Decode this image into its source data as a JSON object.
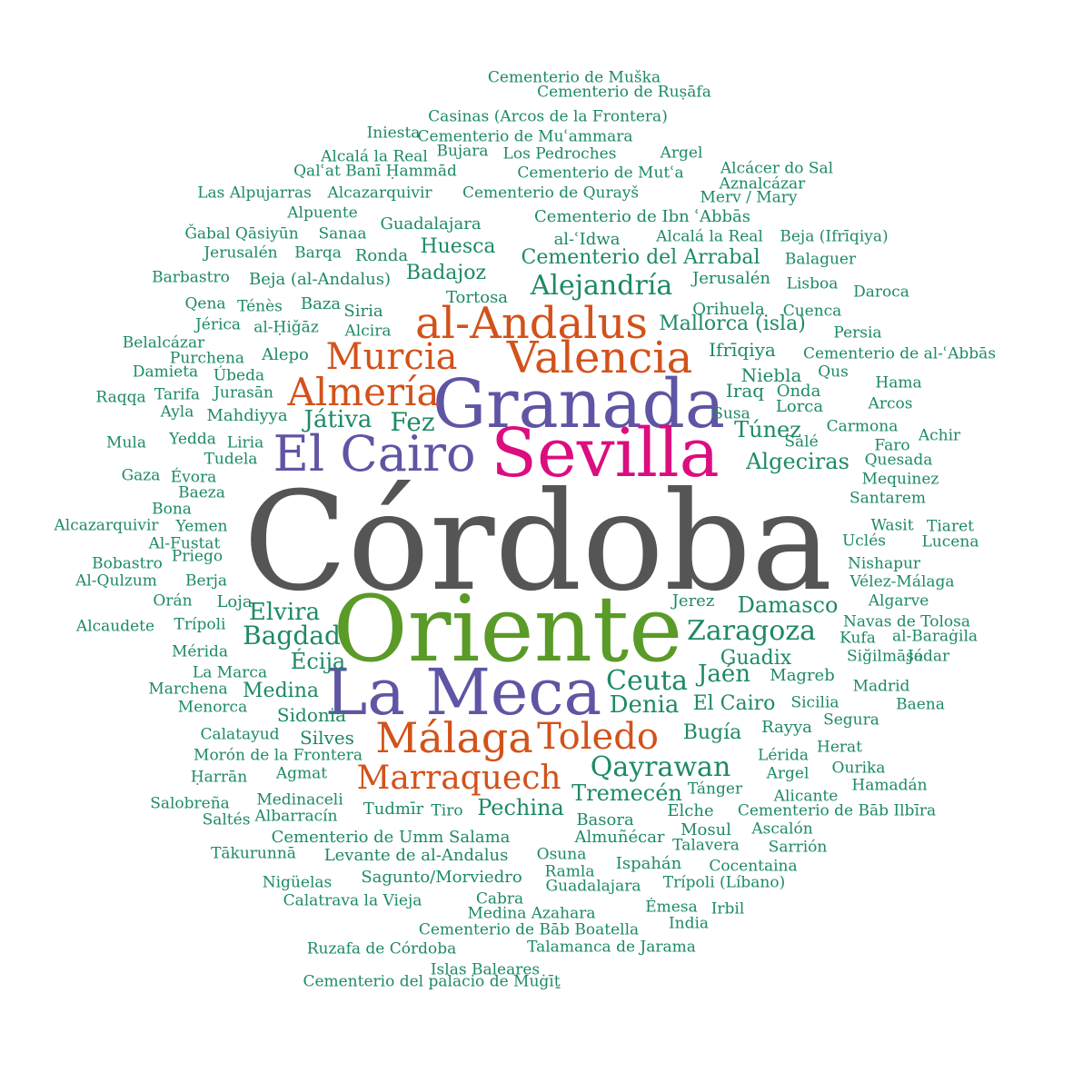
{
  "colors": {
    "grey": "#555555",
    "purple": "#5e55a4",
    "magenta": "#dc0d7f",
    "orange": "#d2521a",
    "olive": "#5a9a27",
    "teal": "#1d8a63"
  },
  "words": [
    {
      "t": "Córdoba",
      "c": "grey",
      "s": 150
    },
    {
      "t": "Oriente",
      "c": "olive",
      "s": 100
    },
    {
      "t": "Granada",
      "c": "purple",
      "s": 74
    },
    {
      "t": "Sevilla",
      "c": "magenta",
      "s": 74
    },
    {
      "t": "La Meca",
      "c": "purple",
      "s": 70
    },
    {
      "t": "El Cairo",
      "c": "purple",
      "s": 54
    },
    {
      "t": "al-Andalus",
      "c": "orange",
      "s": 48
    },
    {
      "t": "Valencia",
      "c": "orange",
      "s": 48
    },
    {
      "t": "Málaga",
      "c": "orange",
      "s": 46
    },
    {
      "t": "Toledo",
      "c": "orange",
      "s": 40
    },
    {
      "t": "Almería",
      "c": "orange",
      "s": 42
    },
    {
      "t": "Murcia",
      "c": "orange",
      "s": 40
    },
    {
      "t": "Marraquech",
      "c": "orange",
      "s": 36
    },
    {
      "t": "Ceuta",
      "c": "teal",
      "s": 30
    },
    {
      "t": "Qayrawan",
      "c": "teal",
      "s": 30
    },
    {
      "t": "Zaragoza",
      "c": "teal",
      "s": 30
    },
    {
      "t": "Alejandría",
      "c": "teal",
      "s": 30
    },
    {
      "t": "Bagdad",
      "c": "teal",
      "s": 28
    },
    {
      "t": "Elvira",
      "c": "teal",
      "s": 26
    },
    {
      "t": "Damasco",
      "c": "teal",
      "s": 24
    },
    {
      "t": "Denia",
      "c": "teal",
      "s": 26
    },
    {
      "t": "Jaén",
      "c": "teal",
      "s": 26
    },
    {
      "t": "Fez",
      "c": "teal",
      "s": 28
    },
    {
      "t": "Játiva",
      "c": "teal",
      "s": 26
    },
    {
      "t": "Écija",
      "c": "teal",
      "s": 24
    },
    {
      "t": "Pechina",
      "c": "teal",
      "s": 24
    },
    {
      "t": "Tremecén",
      "c": "teal",
      "s": 24
    },
    {
      "t": "Algeciras",
      "c": "teal",
      "s": 24
    },
    {
      "t": "Túnez",
      "c": "teal",
      "s": 24
    },
    {
      "t": "Cementerio del Arrabal",
      "c": "teal",
      "s": 22
    },
    {
      "t": "Mallorca (isla)",
      "c": "teal",
      "s": 22
    },
    {
      "t": "Huesca",
      "c": "teal",
      "s": 22
    },
    {
      "t": "Badajoz",
      "c": "teal",
      "s": 22
    },
    {
      "t": "Medina",
      "c": "teal",
      "s": 22
    },
    {
      "t": "Guadix",
      "c": "teal",
      "s": 22
    },
    {
      "t": "Bugía",
      "c": "teal",
      "s": 22
    },
    {
      "t": "El Cairo",
      "c": "teal",
      "s": 22
    },
    {
      "t": "Sidonia",
      "c": "teal",
      "s": 20
    },
    {
      "t": "Silves",
      "c": "teal",
      "s": 20
    },
    {
      "t": "Niebla",
      "c": "teal",
      "s": 20
    },
    {
      "t": "Iraq",
      "c": "teal",
      "s": 20
    },
    {
      "t": "Ifrīqiya",
      "c": "teal",
      "s": 20
    },
    {
      "t": "Cementerio de Muška",
      "c": "teal",
      "s": 17
    },
    {
      "t": "Cementerio de Ruṣāfa",
      "c": "teal",
      "s": 17
    },
    {
      "t": "Casinas (Arcos de la Frontera)",
      "c": "teal",
      "s": 17
    },
    {
      "t": "Iniesta",
      "c": "teal",
      "s": 17
    },
    {
      "t": "Cementerio de Muʿammara",
      "c": "teal",
      "s": 17
    },
    {
      "t": "Alcalá la Real",
      "c": "teal",
      "s": 17
    },
    {
      "t": "Bujara",
      "c": "teal",
      "s": 17
    },
    {
      "t": "Los Pedroches",
      "c": "teal",
      "s": 17
    },
    {
      "t": "Argel",
      "c": "teal",
      "s": 17
    },
    {
      "t": "Qalʿat Banī Ḥammād",
      "c": "teal",
      "s": 17
    },
    {
      "t": "Cementerio de Mutʿa",
      "c": "teal",
      "s": 17
    },
    {
      "t": "Alcácer do Sal",
      "c": "teal",
      "s": 17
    },
    {
      "t": "Aznalcázar",
      "c": "teal",
      "s": 17
    },
    {
      "t": "Las Alpujarras",
      "c": "teal",
      "s": 17
    },
    {
      "t": "Alcazarquivir",
      "c": "teal",
      "s": 17
    },
    {
      "t": "Cementerio de Qurayš",
      "c": "teal",
      "s": 17
    },
    {
      "t": "Merv / Mary",
      "c": "teal",
      "s": 17
    },
    {
      "t": "Alpuente",
      "c": "teal",
      "s": 17
    },
    {
      "t": "Cementerio de Ibn ʿAbbās",
      "c": "teal",
      "s": 18
    },
    {
      "t": "Guadalajara",
      "c": "teal",
      "s": 18
    },
    {
      "t": "Ǧabal Qāsiyūn",
      "c": "teal",
      "s": 17
    },
    {
      "t": "Sanaa",
      "c": "teal",
      "s": 17
    },
    {
      "t": "al-ʿIdwa",
      "c": "teal",
      "s": 18
    },
    {
      "t": "Alcalá la Real",
      "c": "teal",
      "s": 17
    },
    {
      "t": "Beja (Ifrīqiya)",
      "c": "teal",
      "s": 17
    },
    {
      "t": "Jerusalén",
      "c": "teal",
      "s": 17
    },
    {
      "t": "Barqa",
      "c": "teal",
      "s": 17
    },
    {
      "t": "Ronda",
      "c": "teal",
      "s": 18
    },
    {
      "t": "Balaguer",
      "c": "teal",
      "s": 17
    },
    {
      "t": "Barbastro",
      "c": "teal",
      "s": 17
    },
    {
      "t": "Beja (al-Andalus)",
      "c": "teal",
      "s": 18
    },
    {
      "t": "Jerusalén",
      "c": "teal",
      "s": 18
    },
    {
      "t": "Lisboa",
      "c": "teal",
      "s": 17
    },
    {
      "t": "Daroca",
      "c": "teal",
      "s": 17
    },
    {
      "t": "Tortosa",
      "c": "teal",
      "s": 18
    },
    {
      "t": "Qena",
      "c": "teal",
      "s": 17
    },
    {
      "t": "Ténès",
      "c": "teal",
      "s": 17
    },
    {
      "t": "Baza",
      "c": "teal",
      "s": 18
    },
    {
      "t": "Siria",
      "c": "teal",
      "s": 18
    },
    {
      "t": "Orihuela",
      "c": "teal",
      "s": 18
    },
    {
      "t": "Cuenca",
      "c": "teal",
      "s": 17
    },
    {
      "t": "Jérica",
      "c": "teal",
      "s": 17
    },
    {
      "t": "al-Ḥiǧāz",
      "c": "teal",
      "s": 17
    },
    {
      "t": "Alcira",
      "c": "teal",
      "s": 17
    },
    {
      "t": "Persia",
      "c": "teal",
      "s": 17
    },
    {
      "t": "Belalcázar",
      "c": "teal",
      "s": 17
    },
    {
      "t": "Purchena",
      "c": "teal",
      "s": 17
    },
    {
      "t": "Alepo",
      "c": "teal",
      "s": 18
    },
    {
      "t": "Cementerio de al-ʿAbbās",
      "c": "teal",
      "s": 17
    },
    {
      "t": "Damieta",
      "c": "teal",
      "s": 17
    },
    {
      "t": "Úbeda",
      "c": "teal",
      "s": 17
    },
    {
      "t": "Qus",
      "c": "teal",
      "s": 17
    },
    {
      "t": "Hama",
      "c": "teal",
      "s": 17
    },
    {
      "t": "Raqqa",
      "c": "teal",
      "s": 17
    },
    {
      "t": "Tarifa",
      "c": "teal",
      "s": 17
    },
    {
      "t": "Jurasān",
      "c": "teal",
      "s": 17
    },
    {
      "t": "Onda",
      "c": "teal",
      "s": 18
    },
    {
      "t": "Arcos",
      "c": "teal",
      "s": 17
    },
    {
      "t": "Ayla",
      "c": "teal",
      "s": 17
    },
    {
      "t": "Mahdiyya",
      "c": "teal",
      "s": 18
    },
    {
      "t": "Lorca",
      "c": "teal",
      "s": 18
    },
    {
      "t": "Susa",
      "c": "teal",
      "s": 17
    },
    {
      "t": "Carmona",
      "c": "teal",
      "s": 17
    },
    {
      "t": "Achir",
      "c": "teal",
      "s": 17
    },
    {
      "t": "Mula",
      "c": "teal",
      "s": 17
    },
    {
      "t": "Yedda",
      "c": "teal",
      "s": 17
    },
    {
      "t": "Liria",
      "c": "teal",
      "s": 17
    },
    {
      "t": "Salé",
      "c": "teal",
      "s": 17
    },
    {
      "t": "Faro",
      "c": "teal",
      "s": 17
    },
    {
      "t": "Tudela",
      "c": "teal",
      "s": 17
    },
    {
      "t": "Quesada",
      "c": "teal",
      "s": 17
    },
    {
      "t": "Gaza",
      "c": "teal",
      "s": 17
    },
    {
      "t": "Évora",
      "c": "teal",
      "s": 17
    },
    {
      "t": "Mequinez",
      "c": "teal",
      "s": 17
    },
    {
      "t": "Baeza",
      "c": "teal",
      "s": 17
    },
    {
      "t": "Bona",
      "c": "teal",
      "s": 17
    },
    {
      "t": "Santarem",
      "c": "teal",
      "s": 17
    },
    {
      "t": "Alcazarquivir",
      "c": "teal",
      "s": 17
    },
    {
      "t": "Yemen",
      "c": "teal",
      "s": 17
    },
    {
      "t": "Wasit",
      "c": "teal",
      "s": 17
    },
    {
      "t": "Tiaret",
      "c": "teal",
      "s": 17
    },
    {
      "t": "Al-Fustat",
      "c": "teal",
      "s": 17
    },
    {
      "t": "Uclés",
      "c": "teal",
      "s": 17
    },
    {
      "t": "Lucena",
      "c": "teal",
      "s": 17
    },
    {
      "t": "Priego",
      "c": "teal",
      "s": 17
    },
    {
      "t": "Bobastro",
      "c": "teal",
      "s": 17
    },
    {
      "t": "Nishapur",
      "c": "teal",
      "s": 17
    },
    {
      "t": "Al-Qulzum",
      "c": "teal",
      "s": 17
    },
    {
      "t": "Berja",
      "c": "teal",
      "s": 17
    },
    {
      "t": "Vélez-Málaga",
      "c": "teal",
      "s": 17
    },
    {
      "t": "Orán",
      "c": "teal",
      "s": 17
    },
    {
      "t": "Loja",
      "c": "teal",
      "s": 18
    },
    {
      "t": "Jerez",
      "c": "teal",
      "s": 18
    },
    {
      "t": "Algarve",
      "c": "teal",
      "s": 17
    },
    {
      "t": "Alcaudete",
      "c": "teal",
      "s": 17
    },
    {
      "t": "Trípoli",
      "c": "teal",
      "s": 17
    },
    {
      "t": "Navas de Tolosa",
      "c": "teal",
      "s": 17
    },
    {
      "t": "Kufa",
      "c": "teal",
      "s": 17
    },
    {
      "t": "al-Baraġila",
      "c": "teal",
      "s": 17
    },
    {
      "t": "Mérida",
      "c": "teal",
      "s": 17
    },
    {
      "t": "Siğilmāsa",
      "c": "teal",
      "s": 17
    },
    {
      "t": "Jódar",
      "c": "teal",
      "s": 17
    },
    {
      "t": "La Marca",
      "c": "teal",
      "s": 17
    },
    {
      "t": "Magreb",
      "c": "teal",
      "s": 18
    },
    {
      "t": "Madrid",
      "c": "teal",
      "s": 17
    },
    {
      "t": "Marchena",
      "c": "teal",
      "s": 17
    },
    {
      "t": "Menorca",
      "c": "teal",
      "s": 17
    },
    {
      "t": "Sicilia",
      "c": "teal",
      "s": 17
    },
    {
      "t": "Baena",
      "c": "teal",
      "s": 17
    },
    {
      "t": "Segura",
      "c": "teal",
      "s": 17
    },
    {
      "t": "Calatayud",
      "c": "teal",
      "s": 17
    },
    {
      "t": "Rayya",
      "c": "teal",
      "s": 18
    },
    {
      "t": "Herat",
      "c": "teal",
      "s": 17
    },
    {
      "t": "Morón de la Frontera",
      "c": "teal",
      "s": 17
    },
    {
      "t": "Lérida",
      "c": "teal",
      "s": 17
    },
    {
      "t": "Ourika",
      "c": "teal",
      "s": 17
    },
    {
      "t": "Ḥarrān",
      "c": "teal",
      "s": 17
    },
    {
      "t": "Agmat",
      "c": "teal",
      "s": 17
    },
    {
      "t": "Argel",
      "c": "teal",
      "s": 17
    },
    {
      "t": "Hamadán",
      "c": "teal",
      "s": 17
    },
    {
      "t": "Tánger",
      "c": "teal",
      "s": 17
    },
    {
      "t": "Alicante",
      "c": "teal",
      "s": 17
    },
    {
      "t": "Salobreña",
      "c": "teal",
      "s": 17
    },
    {
      "t": "Medinaceli",
      "c": "teal",
      "s": 17
    },
    {
      "t": "Tudmīr",
      "c": "teal",
      "s": 18
    },
    {
      "t": "Tiro",
      "c": "teal",
      "s": 17
    },
    {
      "t": "Elche",
      "c": "teal",
      "s": 18
    },
    {
      "t": "Cementerio de Bāb Ilbīra",
      "c": "teal",
      "s": 17
    },
    {
      "t": "Saltés",
      "c": "teal",
      "s": 17
    },
    {
      "t": "Albarracín",
      "c": "teal",
      "s": 17
    },
    {
      "t": "Basora",
      "c": "teal",
      "s": 18
    },
    {
      "t": "Mosul",
      "c": "teal",
      "s": 18
    },
    {
      "t": "Ascalón",
      "c": "teal",
      "s": 17
    },
    {
      "t": "Cementerio de Umm Salama",
      "c": "teal",
      "s": 18
    },
    {
      "t": "Almuñécar",
      "c": "teal",
      "s": 18
    },
    {
      "t": "Talavera",
      "c": "teal",
      "s": 17
    },
    {
      "t": "Sarrión",
      "c": "teal",
      "s": 17
    },
    {
      "t": "Tākurunnā",
      "c": "teal",
      "s": 17
    },
    {
      "t": "Levante de al-Andalus",
      "c": "teal",
      "s": 18
    },
    {
      "t": "Osuna",
      "c": "teal",
      "s": 17
    },
    {
      "t": "Ispahán",
      "c": "teal",
      "s": 18
    },
    {
      "t": "Cocentaina",
      "c": "teal",
      "s": 17
    },
    {
      "t": "Ramla",
      "c": "teal",
      "s": 17
    },
    {
      "t": "Nigüelas",
      "c": "teal",
      "s": 17
    },
    {
      "t": "Sagunto/Morviedro",
      "c": "teal",
      "s": 18
    },
    {
      "t": "Guadalajara",
      "c": "teal",
      "s": 17
    },
    {
      "t": "Trípoli (Líbano)",
      "c": "teal",
      "s": 17
    },
    {
      "t": "Cabra",
      "c": "teal",
      "s": 17
    },
    {
      "t": "Calatrava la Vieja",
      "c": "teal",
      "s": 17
    },
    {
      "t": "Émesa",
      "c": "teal",
      "s": 17
    },
    {
      "t": "Irbil",
      "c": "teal",
      "s": 17
    },
    {
      "t": "Medina Azahara",
      "c": "teal",
      "s": 17
    },
    {
      "t": "India",
      "c": "teal",
      "s": 17
    },
    {
      "t": "Cementerio de Bāb Boatella",
      "c": "teal",
      "s": 17
    },
    {
      "t": "Ruzafa de Córdoba",
      "c": "teal",
      "s": 17
    },
    {
      "t": "Talamanca de Jarama",
      "c": "teal",
      "s": 17
    },
    {
      "t": "Islas Baleares",
      "c": "teal",
      "s": 17
    },
    {
      "t": "Cementerio del palacio de Muġīṯ",
      "c": "teal",
      "s": 17
    }
  ]
}
